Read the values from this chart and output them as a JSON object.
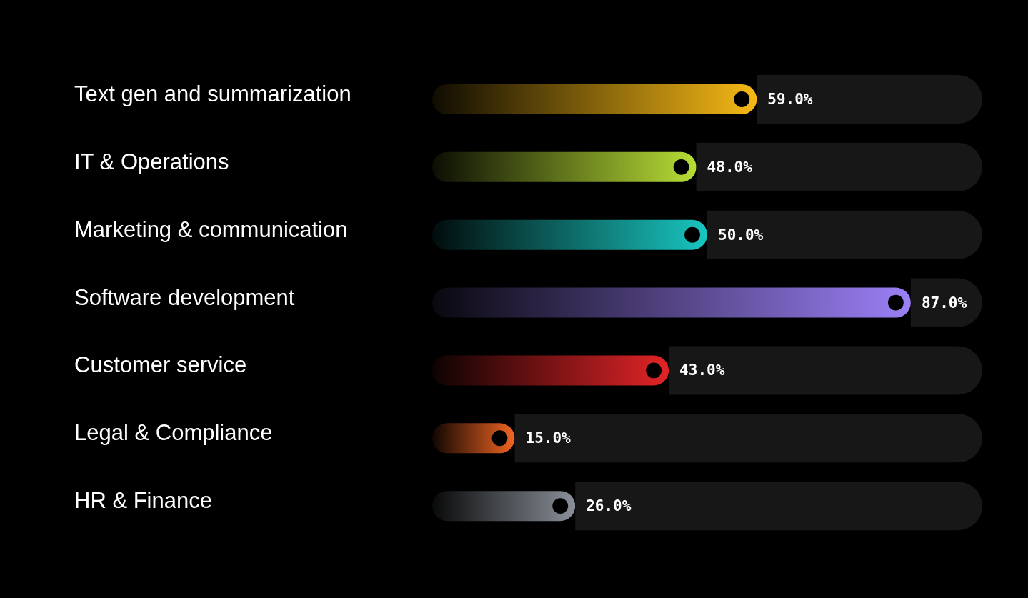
{
  "chart_data": {
    "type": "bar",
    "orientation": "horizontal",
    "stacked": true,
    "categories": [
      "Text gen and summarization",
      "IT & Operations",
      "Marketing & communication",
      "Software development",
      "Customer service",
      "Legal & Compliance",
      "HR & Finance"
    ],
    "series": [
      {
        "colors": [
          "#f7b916",
          "#b8de36",
          "#19c6c0",
          "#9b80f7",
          "#e32427",
          "#f26522",
          "#8a9099"
        ],
        "values": [
          59.0,
          48.0,
          50.0,
          87.0,
          43.0,
          15.0,
          26.0
        ],
        "value_labels": [
          "59.0%",
          "48.0%",
          "50.0%",
          "87.0%",
          "43.0%",
          "15.0%",
          "26.0%"
        ]
      },
      {
        "color": "#171717",
        "values": [
          41.0,
          52.0,
          50.0,
          13.0,
          57.0,
          85.0,
          74.0
        ]
      }
    ],
    "xlim": [
      0,
      100
    ],
    "tick_labels": "y"
  }
}
